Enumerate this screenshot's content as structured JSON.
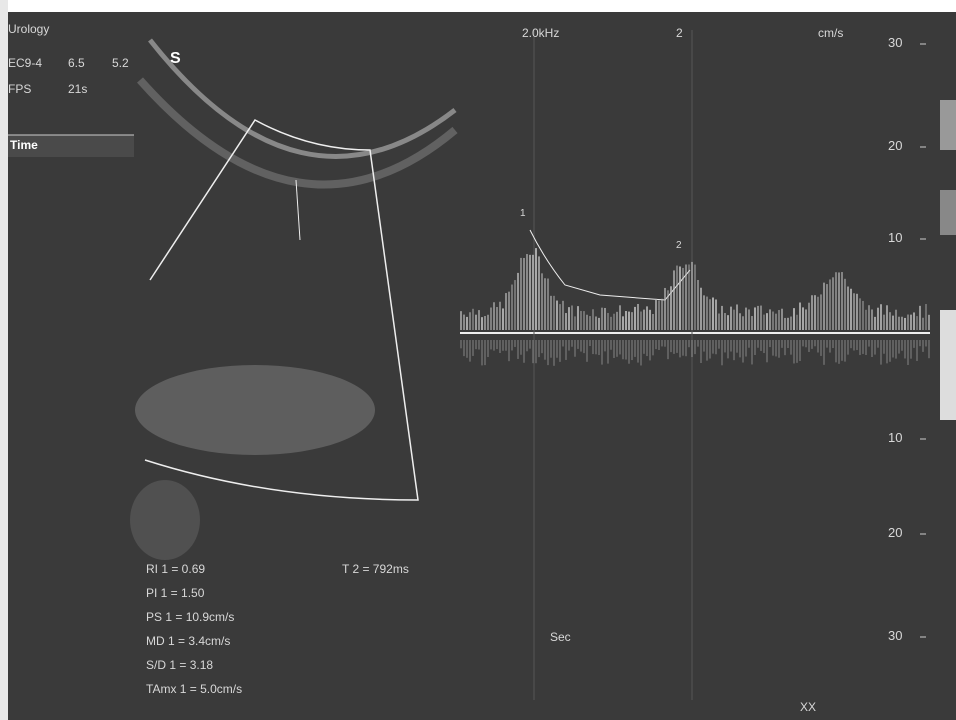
{
  "header": {
    "preset": "Urology",
    "probe": "EC9-4",
    "freq": "6.5",
    "depth": "5.2",
    "fps_label": "FPS",
    "fps": "21s"
  },
  "side_panel": {
    "label": "Time"
  },
  "image": {
    "marker": "S"
  },
  "doppler": {
    "prf": "2.0kHz",
    "gate": "2",
    "unit": "cm/s",
    "scale": [
      "30",
      "20",
      "10",
      "10",
      "20",
      "30"
    ],
    "cursor_labels": [
      "1",
      "2"
    ],
    "time_label": "Sec"
  },
  "measurements": {
    "left": [
      "RI 1 = 0.69",
      "PI 1 = 1.50",
      "PS 1 = 10.9cm/s",
      "MD 1 = 3.4cm/s",
      "S/D 1 = 3.18",
      "TAmx 1 = 5.0cm/s"
    ],
    "right": "T 2 = 792ms"
  },
  "footer": {
    "status": "XX"
  }
}
